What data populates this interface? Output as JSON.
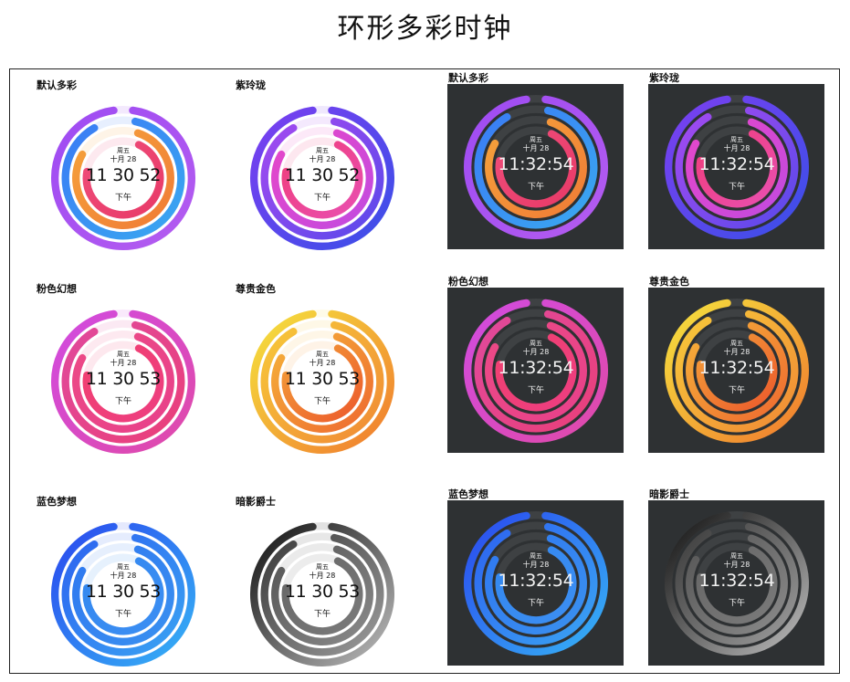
{
  "title": "环形多彩时钟",
  "clock": {
    "weekday": "周五",
    "date": "十月 28",
    "ampm": "下午"
  },
  "themes": [
    {
      "id": "default",
      "label": "默认多彩",
      "light_time": "11 30 52",
      "dark_time": "11:32:54",
      "rings": [
        [
          "#9e4bf2",
          "#b45cf0"
        ],
        [
          "#3a7bf5",
          "#3aa8f0"
        ],
        [
          "#f5a23b",
          "#f07c36"
        ],
        [
          "#ef4d7a",
          "#e83a68"
        ]
      ]
    },
    {
      "id": "purple",
      "label": "紫玲珑",
      "light_time": "11 30 52",
      "dark_time": "11:32:54",
      "rings": [
        [
          "#7b3ff0",
          "#3a4fe8"
        ],
        [
          "#a44af0",
          "#5a49ea"
        ],
        [
          "#e647c8",
          "#c24ae0"
        ],
        [
          "#f03d7a",
          "#e94fb0"
        ]
      ]
    },
    {
      "id": "pink",
      "label": "粉色幻想",
      "light_time": "11 30 53",
      "dark_time": "11:32:54",
      "rings": [
        [
          "#d14be0",
          "#e04aa8"
        ],
        [
          "#e04a9c",
          "#ea3f7a"
        ],
        [
          "#ec4a86",
          "#e8418a"
        ],
        [
          "#f04070",
          "#ee3e80"
        ]
      ]
    },
    {
      "id": "gold",
      "label": "尊贵金色",
      "light_time": "11 30 53",
      "dark_time": "11:32:54",
      "rings": [
        [
          "#f5e23e",
          "#f07a2e"
        ],
        [
          "#f7c93a",
          "#f08a35"
        ],
        [
          "#f5b139",
          "#ee6a30"
        ],
        [
          "#f3a039",
          "#ec5a2c"
        ]
      ]
    },
    {
      "id": "blue",
      "label": "蓝色梦想",
      "light_time": "11 30 53",
      "dark_time": "11:32:54",
      "rings": [
        [
          "#2a48ee",
          "#36b3f5"
        ],
        [
          "#2d63f0",
          "#3aa3f3"
        ],
        [
          "#2f78f0",
          "#3a90f0"
        ],
        [
          "#3388f0",
          "#3c8ef2"
        ]
      ]
    },
    {
      "id": "dark",
      "label": "暗影爵士",
      "light_time": "11 30 53",
      "dark_time": "11:32:54",
      "rings": [
        [
          "#111111",
          "#bdbdbd"
        ],
        [
          "#3a3a3a",
          "#9c9c9c"
        ],
        [
          "#555555",
          "#8a8a8a"
        ],
        [
          "#666666",
          "#7a7a7a"
        ]
      ]
    }
  ]
}
